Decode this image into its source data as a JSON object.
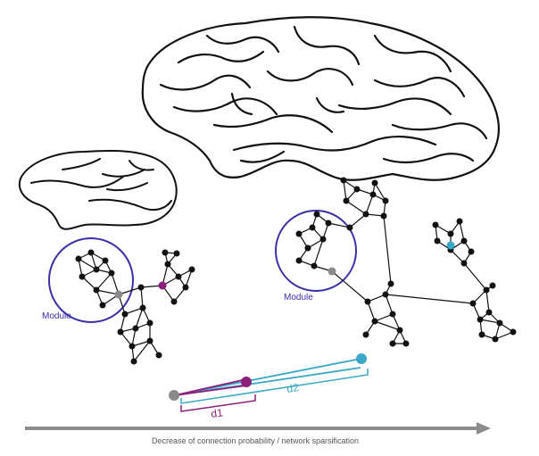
{
  "labels": {
    "module_left": "Module",
    "module_right": "Module",
    "d1": "d1",
    "d2": "d2",
    "axis_caption": "Decrease of connection probability / network sparsification"
  },
  "colors": {
    "module_circle": "#3b2fa6",
    "module_text": "#3b2fa6",
    "grey_node": "#8a8a8a",
    "purple_node": "#8a1f7a",
    "cyan_node": "#3aa8c6",
    "d1_color": "#8a1f7a",
    "d2_color": "#3aa8c6",
    "arrow": "#8c8c8c",
    "network": "#111111"
  },
  "icons": {
    "small_brain": "monkey-brain-outline",
    "large_brain": "human-brain-outline"
  }
}
